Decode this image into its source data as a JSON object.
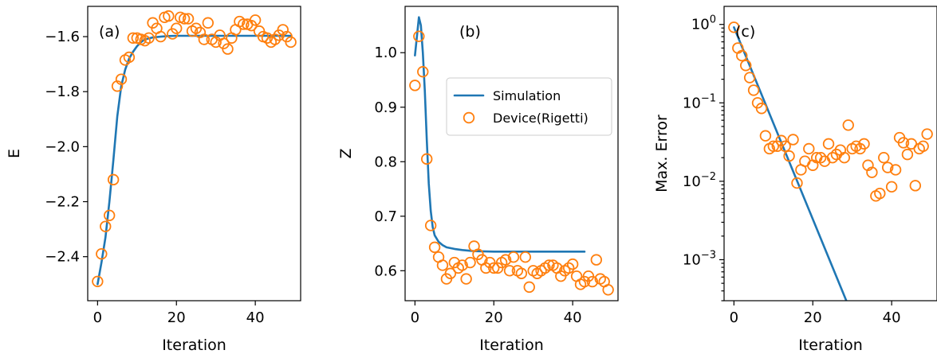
{
  "colors": {
    "simulation": "#1f77b4",
    "device": "#ff7f0e"
  },
  "legend": {
    "simulation": "Simulation",
    "device": "Device(Rigetti)",
    "location": "right"
  },
  "chart_data": [
    {
      "type": "line",
      "panel_label": "(a)",
      "xlabel": "Iteration",
      "ylabel": "E",
      "xlim": [
        -2.5,
        51.5
      ],
      "ylim": [
        -2.56,
        -1.49
      ],
      "xticks": [
        0,
        20,
        40
      ],
      "yticks": [
        -2.4,
        -2.2,
        -2.0,
        -1.8,
        -1.6
      ],
      "ytick_labels": [
        "−2.4",
        "−2.2",
        "−2.0",
        "−1.8",
        "−1.6"
      ],
      "yscale": "linear",
      "series": [
        {
          "name": "Simulation",
          "kind": "line",
          "x": [
            0,
            1,
            2,
            3,
            4,
            5,
            6,
            7,
            8,
            9,
            10,
            11,
            12,
            14,
            16,
            18,
            20,
            25,
            30,
            35,
            40,
            45,
            49
          ],
          "y": [
            -2.5,
            -2.42,
            -2.33,
            -2.2,
            -2.05,
            -1.89,
            -1.78,
            -1.72,
            -1.68,
            -1.655,
            -1.635,
            -1.62,
            -1.61,
            -1.603,
            -1.6,
            -1.598,
            -1.597,
            -1.597,
            -1.597,
            -1.597,
            -1.597,
            -1.597,
            -1.597
          ]
        },
        {
          "name": "Device(Rigetti)",
          "kind": "scatter",
          "x": [
            0,
            1,
            2,
            3,
            4,
            5,
            6,
            7,
            8,
            9,
            10,
            11,
            12,
            13,
            14,
            15,
            16,
            17,
            18,
            19,
            20,
            21,
            22,
            23,
            24,
            25,
            26,
            27,
            28,
            29,
            30,
            31,
            32,
            33,
            34,
            35,
            36,
            37,
            38,
            39,
            40,
            41,
            42,
            43,
            44,
            45,
            46,
            47,
            48,
            49
          ],
          "y": [
            -2.49,
            -2.39,
            -2.29,
            -2.25,
            -2.12,
            -1.78,
            -1.755,
            -1.685,
            -1.675,
            -1.605,
            -1.605,
            -1.61,
            -1.615,
            -1.605,
            -1.55,
            -1.57,
            -1.6,
            -1.53,
            -1.525,
            -1.59,
            -1.57,
            -1.53,
            -1.535,
            -1.535,
            -1.58,
            -1.57,
            -1.585,
            -1.61,
            -1.55,
            -1.61,
            -1.62,
            -1.595,
            -1.625,
            -1.645,
            -1.605,
            -1.575,
            -1.545,
            -1.555,
            -1.555,
            -1.56,
            -1.54,
            -1.58,
            -1.6,
            -1.605,
            -1.62,
            -1.61,
            -1.595,
            -1.575,
            -1.6,
            -1.62
          ]
        }
      ]
    },
    {
      "type": "line",
      "panel_label": "(b)",
      "xlabel": "Iteration",
      "ylabel": "Z",
      "xlim": [
        -2.5,
        51.5
      ],
      "ylim": [
        0.545,
        1.085
      ],
      "xticks": [
        0,
        20,
        40
      ],
      "yticks": [
        0.6,
        0.7,
        0.8,
        0.9,
        1.0
      ],
      "ytick_labels": [
        "0.6",
        "0.7",
        "0.8",
        "0.9",
        "1.0"
      ],
      "yscale": "linear",
      "series": [
        {
          "name": "Simulation",
          "kind": "line",
          "x": [
            0,
            0.5,
            1,
            1.5,
            2,
            2.5,
            3,
            3.5,
            4,
            4.5,
            5,
            6,
            7,
            8,
            10,
            12,
            15,
            20,
            25,
            30,
            35,
            40,
            43
          ],
          "y": [
            0.995,
            1.03,
            1.065,
            1.05,
            1.0,
            0.93,
            0.84,
            0.76,
            0.71,
            0.68,
            0.665,
            0.653,
            0.647,
            0.643,
            0.64,
            0.638,
            0.636,
            0.635,
            0.635,
            0.635,
            0.635,
            0.635,
            0.635
          ]
        },
        {
          "name": "Device(Rigetti)",
          "kind": "scatter",
          "x": [
            0,
            1,
            2,
            3,
            4,
            5,
            6,
            7,
            8,
            9,
            10,
            11,
            12,
            13,
            14,
            15,
            16,
            17,
            18,
            19,
            20,
            21,
            22,
            23,
            24,
            25,
            26,
            27,
            28,
            29,
            30,
            31,
            32,
            33,
            34,
            35,
            36,
            37,
            38,
            39,
            40,
            41,
            42,
            43,
            44,
            45,
            46,
            47,
            48,
            49
          ],
          "y": [
            0.94,
            1.03,
            0.965,
            0.805,
            0.683,
            0.643,
            0.625,
            0.61,
            0.585,
            0.595,
            0.615,
            0.605,
            0.61,
            0.585,
            0.615,
            0.645,
            0.63,
            0.62,
            0.605,
            0.615,
            0.605,
            0.605,
            0.615,
            0.62,
            0.6,
            0.625,
            0.6,
            0.595,
            0.625,
            0.57,
            0.6,
            0.595,
            0.6,
            0.605,
            0.61,
            0.61,
            0.605,
            0.59,
            0.6,
            0.605,
            0.612,
            0.59,
            0.575,
            0.58,
            0.59,
            0.58,
            0.62,
            0.585,
            0.58,
            0.565
          ]
        }
      ]
    },
    {
      "type": "line",
      "panel_label": "(c)",
      "xlabel": "Iteration",
      "ylabel": "Max. Error",
      "xlim": [
        -2.5,
        51.5
      ],
      "ylim": [
        0.0003,
        1.7
      ],
      "xticks": [
        0,
        20,
        40
      ],
      "yticks": [
        0.001,
        0.01,
        0.1,
        1
      ],
      "ytick_labels": [
        "10^-3",
        "10^-2",
        "10^-1",
        "10^0"
      ],
      "yscale": "log",
      "series": [
        {
          "name": "Simulation",
          "kind": "line",
          "x": [
            0,
            28.5
          ],
          "y": [
            0.92,
            0.0003
          ]
        },
        {
          "name": "Device(Rigetti)",
          "kind": "scatter",
          "x": [
            0,
            1,
            2,
            3,
            4,
            5,
            6,
            7,
            8,
            9,
            10,
            11,
            12,
            13,
            14,
            15,
            16,
            17,
            18,
            19,
            20,
            21,
            22,
            23,
            24,
            25,
            26,
            27,
            28,
            29,
            30,
            31,
            32,
            33,
            34,
            35,
            36,
            37,
            38,
            39,
            40,
            41,
            42,
            43,
            44,
            45,
            46,
            47,
            48,
            49
          ],
          "y": [
            0.92,
            0.5,
            0.4,
            0.3,
            0.21,
            0.145,
            0.1,
            0.085,
            0.038,
            0.026,
            0.028,
            0.028,
            0.033,
            0.028,
            0.021,
            0.034,
            0.0095,
            0.014,
            0.018,
            0.026,
            0.016,
            0.02,
            0.02,
            0.018,
            0.03,
            0.02,
            0.022,
            0.025,
            0.02,
            0.052,
            0.026,
            0.028,
            0.026,
            0.03,
            0.016,
            0.013,
            0.0065,
            0.007,
            0.02,
            0.015,
            0.0085,
            0.014,
            0.036,
            0.031,
            0.022,
            0.03,
            0.0088,
            0.026,
            0.028,
            0.04
          ]
        }
      ]
    }
  ]
}
